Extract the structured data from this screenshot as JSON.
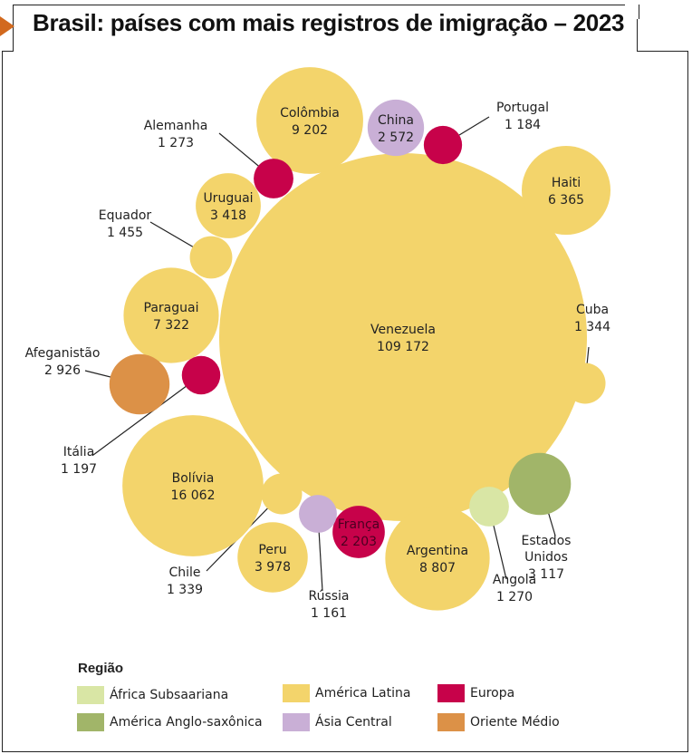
{
  "title": "Brasil: países com mais registros de imigração – 2023",
  "colors": {
    "africa_subsaariana": "#d9e6a5",
    "america_latina": "#f3d46b",
    "europa": "#c7024a",
    "america_anglo": "#a1b569",
    "asia_central": "#c9afd6",
    "oriente_medio": "#dc9147"
  },
  "legend": {
    "title": "Região",
    "items": [
      {
        "label": "África Subsaariana",
        "color": "#d9e6a5"
      },
      {
        "label": "América Latina",
        "color": "#f3d46b"
      },
      {
        "label": "Europa",
        "color": "#c7024a"
      },
      {
        "label": "América Anglo-saxônica",
        "color": "#a1b569"
      },
      {
        "label": "Ásia Central",
        "color": "#c9afd6"
      },
      {
        "label": "Oriente Médio",
        "color": "#dc9147"
      }
    ]
  },
  "chart_data": {
    "type": "bubble",
    "title": "Brasil: países com mais registros de imigração – 2023",
    "items": [
      {
        "country": "Venezuela",
        "value_label": "109 172",
        "value": 109172,
        "region": "América Latina"
      },
      {
        "country": "Bolívia",
        "value_label": "16 062",
        "value": 16062,
        "region": "América Latina"
      },
      {
        "country": "Colômbia",
        "value_label": "9 202",
        "value": 9202,
        "region": "América Latina"
      },
      {
        "country": "Argentina",
        "value_label": "8 807",
        "value": 8807,
        "region": "América Latina"
      },
      {
        "country": "Paraguai",
        "value_label": "7 322",
        "value": 7322,
        "region": "América Latina"
      },
      {
        "country": "Haiti",
        "value_label": "6 365",
        "value": 6365,
        "region": "América Latina"
      },
      {
        "country": "Peru",
        "value_label": "3 978",
        "value": 3978,
        "region": "América Latina"
      },
      {
        "country": "Uruguai",
        "value_label": "3 418",
        "value": 3418,
        "region": "América Latina"
      },
      {
        "country": "Estados Unidos",
        "value_label": "3 117",
        "value": 3117,
        "region": "América Anglo-saxônica"
      },
      {
        "country": "Afeganistão",
        "value_label": "2 926",
        "value": 2926,
        "region": "Oriente Médio"
      },
      {
        "country": "China",
        "value_label": "2 572",
        "value": 2572,
        "region": "Ásia Central"
      },
      {
        "country": "França",
        "value_label": "2 203",
        "value": 2203,
        "region": "Europa"
      },
      {
        "country": "Equador",
        "value_label": "1 455",
        "value": 1455,
        "region": "América Latina"
      },
      {
        "country": "Cuba",
        "value_label": "1 344",
        "value": 1344,
        "region": "América Latina"
      },
      {
        "country": "Chile",
        "value_label": "1 339",
        "value": 1339,
        "region": "América Latina"
      },
      {
        "country": "Alemanha",
        "value_label": "1 273",
        "value": 1273,
        "region": "Europa"
      },
      {
        "country": "Angola",
        "value_label": "1 270",
        "value": 1270,
        "region": "África Subsaariana"
      },
      {
        "country": "Itália",
        "value_label": "1 197",
        "value": 1197,
        "region": "Europa"
      },
      {
        "country": "Portugal",
        "value_label": "1 184",
        "value": 1184,
        "region": "Europa"
      },
      {
        "country": "Rússia",
        "value_label": "1 161",
        "value": 1161,
        "region": "Ásia Central"
      }
    ]
  }
}
